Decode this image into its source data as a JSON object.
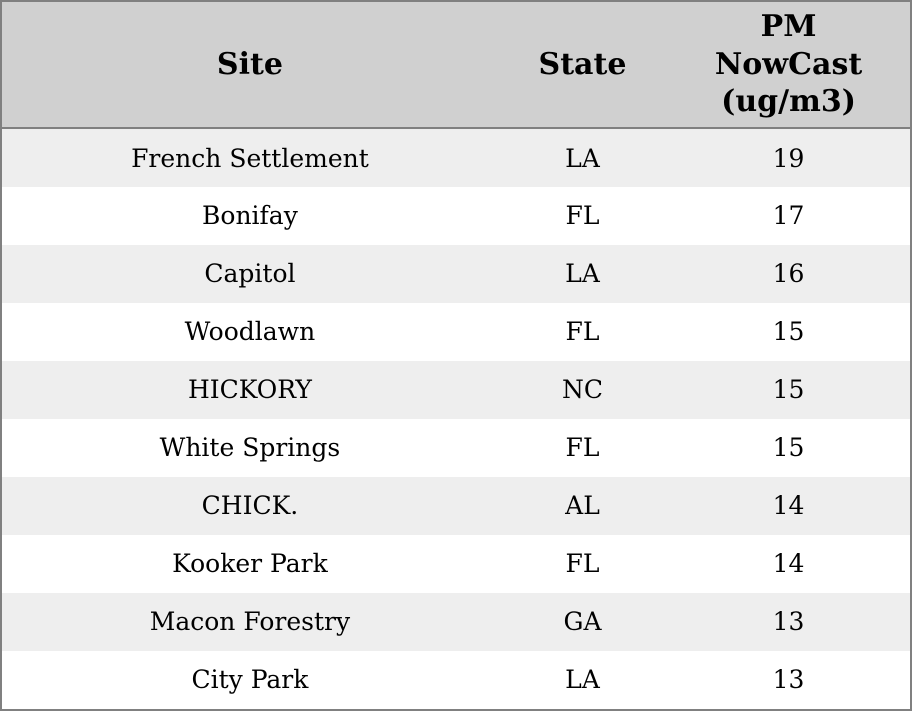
{
  "chart_data": {
    "type": "table",
    "columns": [
      "Site",
      "State",
      "PM NowCast (ug/m3)"
    ],
    "rows": [
      [
        "French Settlement",
        "LA",
        19
      ],
      [
        "Bonifay",
        "FL",
        17
      ],
      [
        "Capitol",
        "LA",
        16
      ],
      [
        "Woodlawn",
        "FL",
        15
      ],
      [
        "HICKORY",
        "NC",
        15
      ],
      [
        "White Springs",
        "FL",
        15
      ],
      [
        "CHICK.",
        "AL",
        14
      ],
      [
        "Kooker Park",
        "FL",
        14
      ],
      [
        "Macon Forestry",
        "GA",
        13
      ],
      [
        "City Park",
        "LA",
        13
      ]
    ]
  },
  "colors": {
    "header_bg": "#d0d0d0",
    "row_bg": "#ffffff",
    "row_alt_bg": "#eeeeee",
    "border": "#808080",
    "text": "#000000"
  }
}
